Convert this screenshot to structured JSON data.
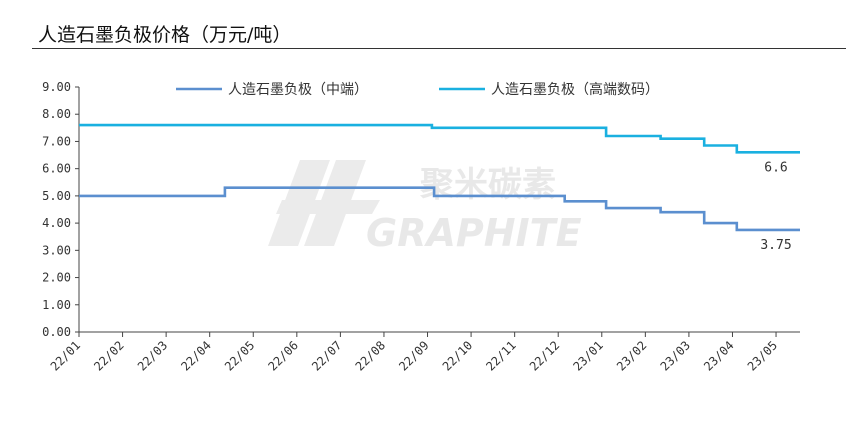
{
  "header": {
    "title": "人造石墨负极价格（万元/吨）"
  },
  "watermark": {
    "cn": "聚米碳素",
    "en": "GRAPHITE"
  },
  "chart_data": {
    "type": "line",
    "title": "人造石墨负极价格（万元/吨）",
    "xlabel": "",
    "ylabel": "",
    "ylim": [
      0,
      9
    ],
    "yticks": [
      "0.00",
      "1.00",
      "2.00",
      "3.00",
      "4.00",
      "5.00",
      "6.00",
      "7.00",
      "8.00",
      "9.00"
    ],
    "categories": [
      "22/01",
      "22/02",
      "22/03",
      "22/04",
      "22/05",
      "22/06",
      "22/07",
      "22/08",
      "22/09",
      "22/10",
      "22/11",
      "22/12",
      "23/01",
      "23/02",
      "23/03",
      "23/04",
      "23/05"
    ],
    "x_range": [
      0,
      16.55
    ],
    "grid": false,
    "legend": "top",
    "series": [
      {
        "name": "人造石墨负极（中端）",
        "color": "#5b8fcf",
        "points": [
          [
            0,
            5.0
          ],
          [
            3.35,
            5.0
          ],
          [
            3.35,
            5.3
          ],
          [
            8.15,
            5.3
          ],
          [
            8.15,
            5.0
          ],
          [
            11.15,
            5.0
          ],
          [
            11.15,
            4.8
          ],
          [
            12.1,
            4.8
          ],
          [
            12.1,
            4.55
          ],
          [
            13.35,
            4.55
          ],
          [
            13.35,
            4.4
          ],
          [
            14.35,
            4.4
          ],
          [
            14.35,
            4.0
          ],
          [
            15.1,
            4.0
          ],
          [
            15.1,
            3.75
          ],
          [
            16.55,
            3.75
          ]
        ],
        "end_label": "3.75"
      },
      {
        "name": "人造石墨负极（高端数码）",
        "color": "#1ab0e0",
        "points": [
          [
            0,
            7.6
          ],
          [
            8.1,
            7.6
          ],
          [
            8.1,
            7.5
          ],
          [
            12.1,
            7.5
          ],
          [
            12.1,
            7.2
          ],
          [
            13.35,
            7.2
          ],
          [
            13.35,
            7.1
          ],
          [
            14.35,
            7.1
          ],
          [
            14.35,
            6.85
          ],
          [
            15.1,
            6.85
          ],
          [
            15.1,
            6.6
          ],
          [
            16.55,
            6.6
          ]
        ],
        "end_label": "6.6"
      }
    ]
  }
}
